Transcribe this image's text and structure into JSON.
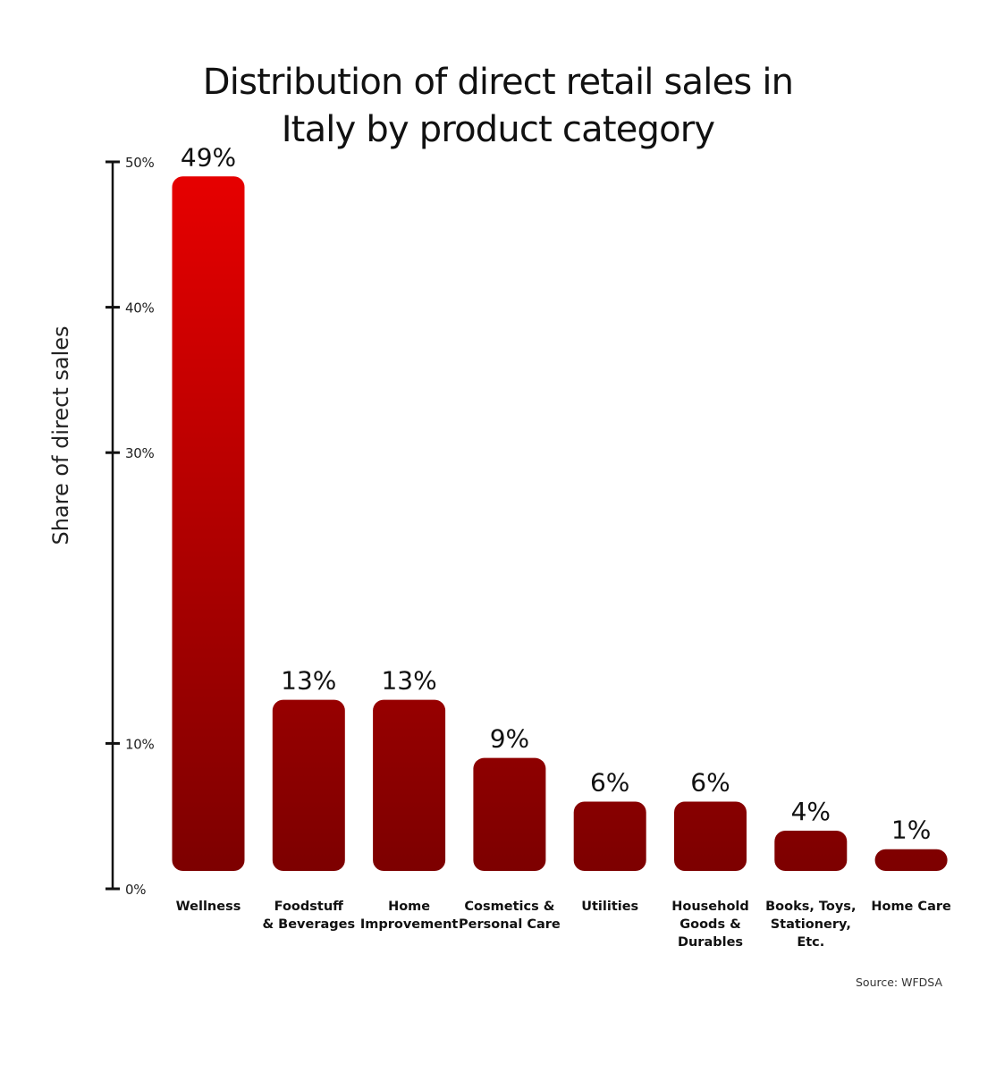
{
  "chart_data": {
    "type": "bar",
    "title_lines": [
      "Distribution of direct retail sales in",
      "Italy by product category"
    ],
    "ylabel": "Share of direct sales",
    "xlabel": "",
    "ylim": [
      0,
      50
    ],
    "y_ticks": [
      {
        "value": 0,
        "label": "0%"
      },
      {
        "value": 10,
        "label": "10%"
      },
      {
        "value": 30,
        "label": "30%"
      },
      {
        "value": 40,
        "label": "40%"
      },
      {
        "value": 50,
        "label": "50%"
      }
    ],
    "categories": [
      [
        "Wellness"
      ],
      [
        "Foodstuff",
        "& Beverages"
      ],
      [
        "Home",
        "Improvement"
      ],
      [
        "Cosmetics &",
        "Personal Care"
      ],
      [
        "Utilities"
      ],
      [
        "Household",
        "Goods &",
        "Durables"
      ],
      [
        "Books, Toys,",
        "Stationery,",
        "Etc."
      ],
      [
        "Home Care"
      ]
    ],
    "values": [
      49,
      13,
      13,
      9,
      6,
      6,
      4,
      1
    ],
    "value_labels": [
      "49%",
      "13%",
      "13%",
      "9%",
      "6%",
      "6%",
      "4%",
      "1%"
    ],
    "grid": false,
    "legend": "none",
    "colors": {
      "bar_top": "#e50000",
      "bar_bottom": "#7d0000",
      "text": "#111111"
    }
  },
  "source": "Source: WFDSA"
}
